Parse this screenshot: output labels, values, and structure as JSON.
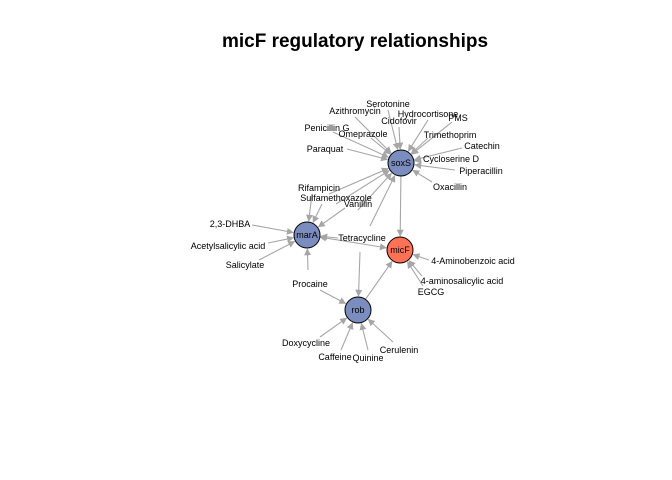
{
  "title": "micF regulatory relationships",
  "colors": {
    "regulator_node": "#7b8cbf",
    "target_node": "#ff7256",
    "edge": "#a6a6a6"
  },
  "nodes": [
    {
      "id": "soxS",
      "label": "soxS",
      "kind": "regulator"
    },
    {
      "id": "marA",
      "label": "marA",
      "kind": "regulator"
    },
    {
      "id": "rob",
      "label": "rob",
      "kind": "regulator"
    },
    {
      "id": "micF",
      "label": "micF",
      "kind": "target"
    }
  ],
  "compounds": [
    {
      "id": "serotonine",
      "label": "Serotonine"
    },
    {
      "id": "azithromycin",
      "label": "Azithromycin"
    },
    {
      "id": "hydrocortisone",
      "label": "Hydrocortisone"
    },
    {
      "id": "cidofovir",
      "label": "Cidofovir"
    },
    {
      "id": "pms",
      "label": "PMS"
    },
    {
      "id": "penicillin_g",
      "label": "Penicillin G"
    },
    {
      "id": "omeprazole",
      "label": "Omeprazole"
    },
    {
      "id": "trimethoprim",
      "label": "Trimethoprim"
    },
    {
      "id": "catechin",
      "label": "Catechin"
    },
    {
      "id": "paraquat",
      "label": "Paraquat"
    },
    {
      "id": "cycloserine_d",
      "label": "Cycloserine D"
    },
    {
      "id": "piperacillin",
      "label": "Piperacillin"
    },
    {
      "id": "oxacillin",
      "label": "Oxacillin"
    },
    {
      "id": "rifampicin",
      "label": "Rifampicin"
    },
    {
      "id": "sulfamethoxazole",
      "label": "Sulfamethoxazole"
    },
    {
      "id": "vanillin",
      "label": "Vanillin"
    },
    {
      "id": "dhba",
      "label": "2,3-DHBA"
    },
    {
      "id": "acetylsalicylic",
      "label": "Acetylsalicylic acid"
    },
    {
      "id": "salicylate",
      "label": "Salicylate"
    },
    {
      "id": "tetracycline",
      "label": "Tetracycline"
    },
    {
      "id": "aminobenzoic",
      "label": "4-Aminobenzoic acid"
    },
    {
      "id": "aminosalicylic",
      "label": "4-aminosalicylic acid"
    },
    {
      "id": "egcg",
      "label": "EGCG"
    },
    {
      "id": "procaine",
      "label": "Procaine"
    },
    {
      "id": "doxycycline",
      "label": "Doxycycline"
    },
    {
      "id": "caffeine",
      "label": "Caffeine"
    },
    {
      "id": "quinine",
      "label": "Quinine"
    },
    {
      "id": "cerulenin",
      "label": "Cerulenin"
    }
  ],
  "edges": [
    {
      "from": "serotonine",
      "to": "soxS"
    },
    {
      "from": "azithromycin",
      "to": "soxS"
    },
    {
      "from": "hydrocortisone",
      "to": "soxS"
    },
    {
      "from": "cidofovir",
      "to": "soxS"
    },
    {
      "from": "pms",
      "to": "soxS"
    },
    {
      "from": "penicillin_g",
      "to": "soxS"
    },
    {
      "from": "omeprazole",
      "to": "soxS"
    },
    {
      "from": "trimethoprim",
      "to": "soxS"
    },
    {
      "from": "catechin",
      "to": "soxS"
    },
    {
      "from": "paraquat",
      "to": "soxS"
    },
    {
      "from": "cycloserine_d",
      "to": "soxS"
    },
    {
      "from": "piperacillin",
      "to": "soxS"
    },
    {
      "from": "oxacillin",
      "to": "soxS"
    },
    {
      "from": "rifampicin",
      "to": "soxS"
    },
    {
      "from": "sulfamethoxazole",
      "to": "soxS"
    },
    {
      "from": "vanillin",
      "to": "soxS"
    },
    {
      "from": "tetracycline",
      "to": "soxS"
    },
    {
      "from": "rifampicin",
      "to": "marA"
    },
    {
      "from": "sulfamethoxazole",
      "to": "marA"
    },
    {
      "from": "vanillin",
      "to": "marA"
    },
    {
      "from": "dhba",
      "to": "marA"
    },
    {
      "from": "acetylsalicylic",
      "to": "marA"
    },
    {
      "from": "salicylate",
      "to": "marA"
    },
    {
      "from": "procaine",
      "to": "marA"
    },
    {
      "from": "tetracycline",
      "to": "marA"
    },
    {
      "from": "tetracycline",
      "to": "rob"
    },
    {
      "from": "procaine",
      "to": "rob"
    },
    {
      "from": "doxycycline",
      "to": "rob"
    },
    {
      "from": "caffeine",
      "to": "rob"
    },
    {
      "from": "quinine",
      "to": "rob"
    },
    {
      "from": "cerulenin",
      "to": "rob"
    },
    {
      "from": "aminobenzoic",
      "to": "micF"
    },
    {
      "from": "aminosalicylic",
      "to": "micF"
    },
    {
      "from": "egcg",
      "to": "micF"
    },
    {
      "from": "soxS",
      "to": "micF"
    },
    {
      "from": "marA",
      "to": "micF"
    },
    {
      "from": "rob",
      "to": "micF"
    }
  ]
}
